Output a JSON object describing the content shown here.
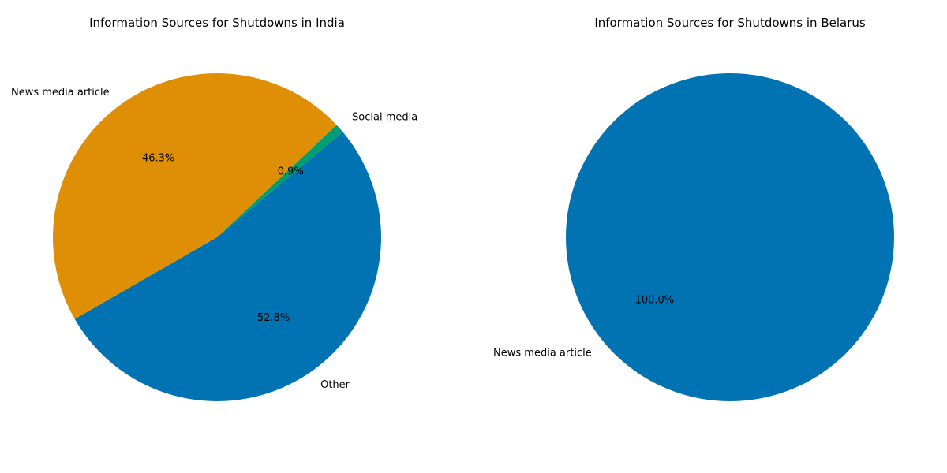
{
  "chart_data": [
    {
      "type": "pie",
      "title": "Information Sources for Shutdowns in India",
      "start_angle_deg": 40,
      "slices": [
        {
          "label": "Social media",
          "value": 0.9,
          "pct_label": "0.9%",
          "color": "#029e73"
        },
        {
          "label": "News media article",
          "value": 46.3,
          "pct_label": "46.3%",
          "color": "#de8f05"
        },
        {
          "label": "Other",
          "value": 52.8,
          "pct_label": "52.8%",
          "color": "#0173b2"
        }
      ]
    },
    {
      "type": "pie",
      "title": "Information Sources for Shutdowns in Belarus",
      "start_angle_deg": 40,
      "slices": [
        {
          "label": "News media article",
          "value": 100.0,
          "pct_label": "100.0%",
          "color": "#0173b2"
        }
      ]
    }
  ]
}
